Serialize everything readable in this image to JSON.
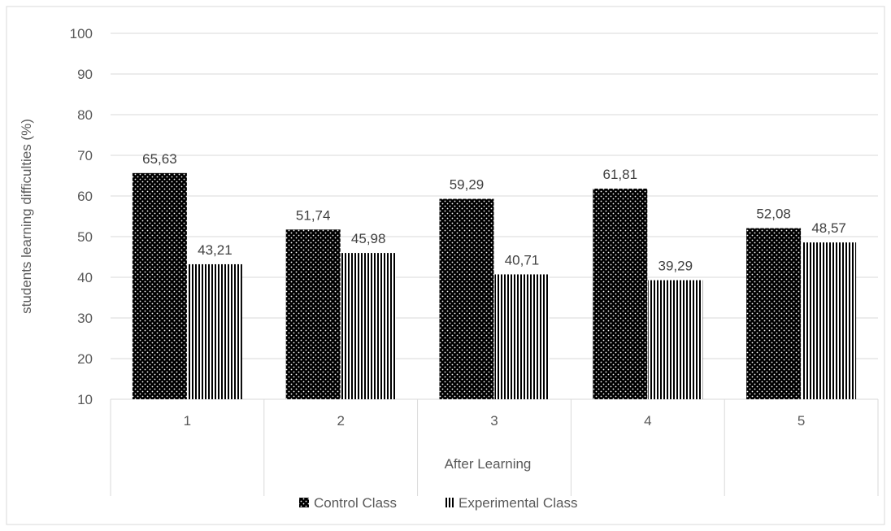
{
  "chart_data": {
    "type": "bar",
    "categories": [
      "1",
      "2",
      "3",
      "4",
      "5"
    ],
    "series": [
      {
        "name": "Control Class",
        "values": [
          65.63,
          51.74,
          59.29,
          61.81,
          52.08
        ],
        "labels": [
          "65,63",
          "51,74",
          "59,29",
          "61,81",
          "52,08"
        ],
        "pattern": "dotted",
        "color": "#000000"
      },
      {
        "name": "Experimental Class",
        "values": [
          43.21,
          45.98,
          40.71,
          39.29,
          48.57
        ],
        "labels": [
          "43,21",
          "45,98",
          "40,71",
          "39,29",
          "48,57"
        ],
        "pattern": "vertical-stripes",
        "color": "#000000"
      }
    ],
    "xlabel": "After Learning",
    "ylabel": "students learning difficulties (%)",
    "ylim": [
      10,
      100
    ],
    "yticks": [
      "10",
      "20",
      "30",
      "40",
      "50",
      "60",
      "70",
      "80",
      "90",
      "100"
    ],
    "grid": true,
    "legend_position": "bottom",
    "gridline_color": "#d9d9d9",
    "text_color": "#595959"
  }
}
